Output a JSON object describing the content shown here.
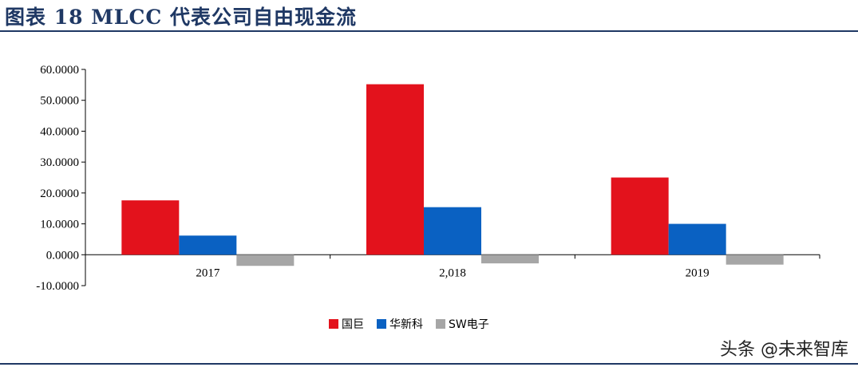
{
  "title": "图表 18   MLCC 代表公司自由现金流",
  "watermark": "头条 @未来智库",
  "chart_data": {
    "type": "bar",
    "categories": [
      "2017",
      "2,018",
      "2019"
    ],
    "series": [
      {
        "name": "国巨",
        "color": "#e3121c",
        "values": [
          17.6,
          55.2,
          25.0
        ]
      },
      {
        "name": "华新科",
        "color": "#0a61c2",
        "values": [
          6.2,
          15.4,
          10.0
        ]
      },
      {
        "name": "SW电子",
        "color": "#a6a6a6",
        "values": [
          -3.6,
          -2.8,
          -3.2
        ]
      }
    ],
    "ylim": [
      -10,
      60
    ],
    "yticks": [
      "-10.0000",
      "0.0000",
      "10.0000",
      "20.0000",
      "30.0000",
      "40.0000",
      "50.0000",
      "60.0000"
    ],
    "ytick_values": [
      -10,
      0,
      10,
      20,
      30,
      40,
      50,
      60
    ],
    "xlabel": "",
    "ylabel": "",
    "legend_position": "bottom-center",
    "grid": false
  }
}
